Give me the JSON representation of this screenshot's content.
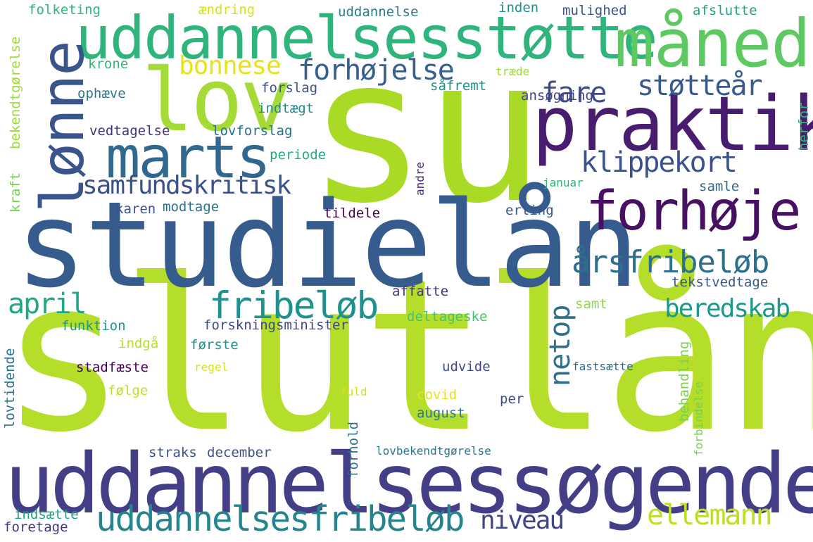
{
  "words": [
    {
      "text": "su",
      "color": "#a9db26"
    },
    {
      "text": "slutlån",
      "color": "#b5de2b"
    },
    {
      "text": "studielån",
      "color": "#365c8d"
    },
    {
      "text": "uddannelsessøgende",
      "color": "#433e85"
    },
    {
      "text": "uddannelsesstøtte",
      "color": "#2fb47c"
    },
    {
      "text": "måned",
      "color": "#5ec962"
    },
    {
      "text": "lov",
      "color": "#a5db36"
    },
    {
      "text": "praktik",
      "color": "#481c6e"
    },
    {
      "text": "lønne",
      "color": "#39558c"
    },
    {
      "text": "marts",
      "color": "#31688e"
    },
    {
      "text": "forhøje",
      "color": "#471063"
    },
    {
      "text": "uddannelsesfribeløb",
      "color": "#25858e"
    },
    {
      "text": "fribeløb",
      "color": "#21918c"
    },
    {
      "text": "årsfribeløb",
      "color": "#2d708e"
    },
    {
      "text": "forhøjelse",
      "color": "#355f8d"
    },
    {
      "text": "fare",
      "color": "#3e4a89"
    },
    {
      "text": "støtteår",
      "color": "#375b8d"
    },
    {
      "text": "klippekort",
      "color": "#3b528b"
    },
    {
      "text": "samfundskritisk",
      "color": "#3b518b"
    },
    {
      "text": "beredskab",
      "color": "#1f998a"
    },
    {
      "text": "ellemann",
      "color": "#bddf26"
    },
    {
      "text": "niveau",
      "color": "#414487"
    },
    {
      "text": "april",
      "color": "#22a884"
    },
    {
      "text": "bonnese",
      "color": "#e5e419"
    },
    {
      "text": "netop",
      "color": "#2e6e8e"
    },
    {
      "text": "folketing",
      "color": "#2fb47c"
    },
    {
      "text": "ændring",
      "color": "#d8e219"
    },
    {
      "text": "uddannelse",
      "color": "#287d8e"
    },
    {
      "text": "inden",
      "color": "#21918c"
    },
    {
      "text": "mulighed",
      "color": "#3b528b"
    },
    {
      "text": "afslutte",
      "color": "#20a386"
    },
    {
      "text": "bekendtgørelse",
      "color": "#a0da39"
    },
    {
      "text": "krone",
      "color": "#35b779"
    },
    {
      "text": "træde",
      "color": "#a0da39"
    },
    {
      "text": "ophæve",
      "color": "#2a788e"
    },
    {
      "text": "forslag",
      "color": "#3b528b"
    },
    {
      "text": "såfremt",
      "color": "#21918c"
    },
    {
      "text": "ansøgning",
      "color": "#414487"
    },
    {
      "text": "indtægt",
      "color": "#23888e"
    },
    {
      "text": "herfor",
      "color": "#35b779"
    },
    {
      "text": "vedtagelse",
      "color": "#46337e"
    },
    {
      "text": "lovforslag",
      "color": "#2c728e"
    },
    {
      "text": "periode",
      "color": "#22a884"
    },
    {
      "text": "kraft",
      "color": "#75d054"
    },
    {
      "text": "andre",
      "color": "#482576"
    },
    {
      "text": "januar",
      "color": "#2fb47c"
    },
    {
      "text": "samle",
      "color": "#31688e"
    },
    {
      "text": "karen",
      "color": "#3b528b"
    },
    {
      "text": "modtage",
      "color": "#2c728e"
    },
    {
      "text": "tildele",
      "color": "#440154"
    },
    {
      "text": "erling",
      "color": "#39568c"
    },
    {
      "text": "affatte",
      "color": "#46337e"
    },
    {
      "text": "tekstvedtage",
      "color": "#39568c"
    },
    {
      "text": "samt",
      "color": "#90d743"
    },
    {
      "text": "deltageske",
      "color": "#4ac16d"
    },
    {
      "text": "funktion",
      "color": "#1f968b"
    },
    {
      "text": "forskningsminister",
      "color": "#3e4989"
    },
    {
      "text": "indgå",
      "color": "#b5de2b"
    },
    {
      "text": "første",
      "color": "#21918c"
    },
    {
      "text": "lovtidende",
      "color": "#2c728e"
    },
    {
      "text": "behandling",
      "color": "#7ad151"
    },
    {
      "text": "forbindelse",
      "color": "#75d054"
    },
    {
      "text": "fastsætte",
      "color": "#31688e"
    },
    {
      "text": "stadfæste",
      "color": "#440154"
    },
    {
      "text": "regel",
      "color": "#d8e219"
    },
    {
      "text": "udvide",
      "color": "#3e4989"
    },
    {
      "text": "følge",
      "color": "#c2df23"
    },
    {
      "text": "covid",
      "color": "#e5e419"
    },
    {
      "text": "fuld",
      "color": "#d8e219"
    },
    {
      "text": "per",
      "color": "#3e4989"
    },
    {
      "text": "august",
      "color": "#2a788e"
    },
    {
      "text": "forhold",
      "color": "#2c728e"
    },
    {
      "text": "straks",
      "color": "#3b528b"
    },
    {
      "text": "december",
      "color": "#3b528b"
    },
    {
      "text": "lovbekendtgørelse",
      "color": "#2a788e"
    },
    {
      "text": "indsætte",
      "color": "#1fa188"
    },
    {
      "text": "foretage",
      "color": "#46337e"
    }
  ]
}
